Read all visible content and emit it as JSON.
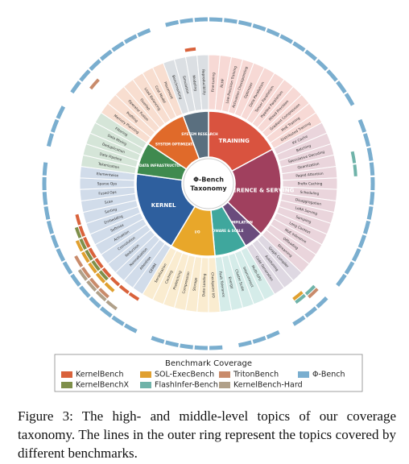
{
  "center": {
    "title": "Φ-Bench",
    "subtitle": "Taxonomy"
  },
  "categories": [
    {
      "label": "TRAINING",
      "color": "#d9533f",
      "leaves": [
        "Fine-tuning",
        "RLHF",
        "Low-Precision Training",
        "Activation Checkpointing",
        "Optimizer",
        "Data Parallelism",
        "Tensor Parallelism",
        "Pipeline Parallelism",
        "Mixed Precision",
        "Gradient Compression",
        "MoE Training",
        "Distributed Training"
      ]
    },
    {
      "label": "INFERENCE & SERVING",
      "color": "#a0405e",
      "leaves": [
        "KV Cache",
        "Batching",
        "Speculative Decoding",
        "Quantization",
        "Paged Attention",
        "Prefix Caching",
        "Scheduling",
        "Disaggregation",
        "LoRA Serving",
        "Sampling",
        "Long Context",
        "MoE Inference",
        "Offloading",
        "Streaming"
      ]
    },
    {
      "label": "COMPILATION",
      "color": "#6a4c7d",
      "leaves": [
        "Graph Compiler",
        "Autotuning",
        "Code Generation"
      ]
    },
    {
      "label": "HARDWARE & SCALE",
      "color": "#3fa79d",
      "leaves": [
        "Multi-GPU",
        "Interconnect",
        "Cluster Scale",
        "Energy",
        "Fault Tolerance"
      ]
    },
    {
      "label": "I/O",
      "color": "#e8a72a",
      "leaves": [
        "Checkpoint I/O",
        "Data Loading",
        "Storage",
        "Compression",
        "Prefetching",
        "Caching",
        "Serialization"
      ]
    },
    {
      "label": "KERNEL",
      "color": "#2e5f9e",
      "leaves": [
        "GEMM",
        "Attention",
        "Normalization",
        "Reduction",
        "Convolution",
        "Activation",
        "Softmax",
        "Embedding",
        "Sorting",
        "Scan",
        "Fused Ops",
        "Sparse Ops",
        "Elementwise"
      ]
    },
    {
      "label": "DATA INFRASTRUCTURE",
      "color": "#3f8a4f",
      "leaves": [
        "Tokenization",
        "Data Pipeline",
        "Deduplication",
        "Data Mixing",
        "Filtering"
      ]
    },
    {
      "label": "SYSTEM OPTIMIZATION",
      "color": "#e06a2a",
      "leaves": [
        "Memory Planning",
        "Profiling",
        "Operator Fusion",
        "Overlap",
        "Load Balancing",
        "Cost Model",
        "Placement"
      ]
    },
    {
      "label": "SYSTEM RESEARCH",
      "color": "#5a6f7f",
      "leaves": [
        "Benchmarking",
        "Simulation",
        "Modeling",
        "Reproducibility"
      ]
    }
  ],
  "legend_title": "Benchmark Coverage",
  "benchmarks": [
    {
      "name": "KernelBench",
      "color": "#d9623b",
      "covers": [
        41,
        42,
        43,
        44,
        45,
        46,
        47,
        48,
        49,
        68
      ]
    },
    {
      "name": "KernelBenchX",
      "color": "#7e8f4a",
      "covers": [
        44,
        45,
        46,
        47,
        48
      ]
    },
    {
      "name": "SOL-ExecBench",
      "color": "#e0a030",
      "covers": [
        27,
        43,
        44,
        45,
        46,
        47
      ]
    },
    {
      "name": "FlashInfer-Bench",
      "color": "#6fb3a9",
      "covers": [
        15,
        16,
        26,
        27
      ]
    },
    {
      "name": "TritonBench",
      "color": "#c98b6b",
      "covers": [
        26,
        43,
        44,
        45,
        46,
        60
      ]
    },
    {
      "name": "KernelBench-Hard",
      "color": "#b0a089",
      "covers": [
        42,
        43,
        44,
        45
      ]
    },
    {
      "name": "Φ-Bench",
      "color": "#7aaecf",
      "covers": [
        0,
        1,
        2,
        3,
        4,
        5,
        6,
        7,
        8,
        9,
        10,
        11,
        13,
        14,
        15,
        16,
        17,
        18,
        19,
        20,
        21,
        22,
        23,
        24,
        26,
        27,
        28,
        30,
        31,
        32,
        34,
        35,
        36,
        37,
        38,
        40,
        41,
        42,
        43,
        44,
        45,
        46,
        47,
        48,
        49,
        50,
        51,
        52,
        53,
        55,
        56,
        57,
        59,
        60,
        61,
        62,
        63,
        64,
        65,
        67,
        68,
        69
      ]
    }
  ],
  "caption": "Figure 3: The high- and middle-level topics of our coverage taxonomy. The lines in the outer ring represent the topics covered by different benchmarks."
}
